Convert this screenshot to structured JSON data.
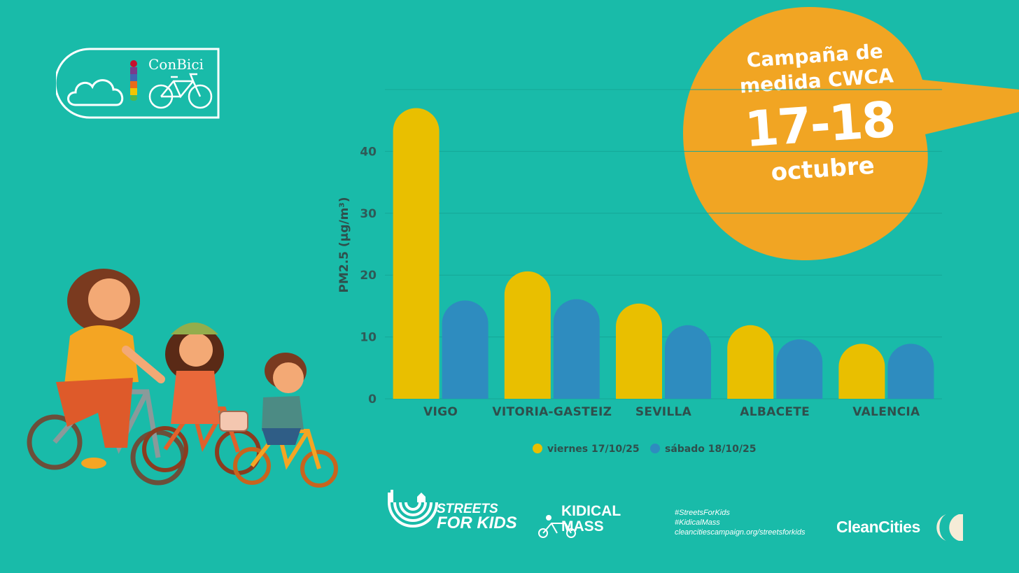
{
  "brand": {
    "logo_text": "ConBici"
  },
  "bubble": {
    "line1": "Campaña de",
    "line2": "medida CWCA",
    "dates": "17-18",
    "month": "octubre"
  },
  "colors": {
    "background": "#19bba9",
    "series_viernes": "#e9bf00",
    "series_sabado": "#2e8cbf",
    "bubble": "#f1a523"
  },
  "chart_data": {
    "type": "bar",
    "title": "",
    "xlabel": "",
    "ylabel": "PM2.5 (µg/m³)",
    "categories": [
      "VIGO",
      "VITORIA-GASTEIZ",
      "SEVILLA",
      "ALBACETE",
      "VALENCIA"
    ],
    "series": [
      {
        "name": "viernes 17/10/25",
        "values": [
          47,
          20.6,
          15.4,
          11.9,
          8.9
        ]
      },
      {
        "name": "sábado 18/10/25",
        "values": [
          15.9,
          16.1,
          11.9,
          9.6,
          8.9
        ]
      }
    ],
    "ylim": [
      0,
      50
    ],
    "yticks": [
      0,
      10,
      20,
      30,
      40
    ],
    "grid": true,
    "legend": "bottom"
  },
  "footer": {
    "streets_line1": "STREETS",
    "streets_line2": "FOR KIDS",
    "kidical_line1": "KIDICAL",
    "kidical_line2": "MASS",
    "hashtags": [
      "#StreetsForKids",
      "#KidicalMass",
      "cleancitiescampaign.org/streetsforkids"
    ],
    "cleancities": "CleanCities"
  }
}
